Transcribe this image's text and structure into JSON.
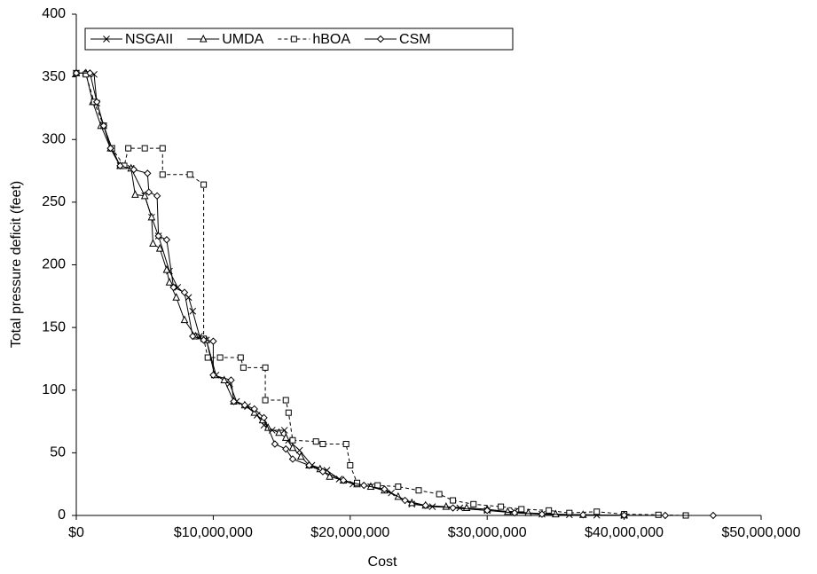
{
  "chart_data": {
    "type": "line",
    "x_label": "Cost",
    "y_label": "Total pressure deficit (feet)",
    "xlim": [
      0,
      50000000
    ],
    "ylim": [
      0,
      400
    ],
    "xticks": [
      {
        "value": 0,
        "label": "$0"
      },
      {
        "value": 10000000,
        "label": "$10,000,000"
      },
      {
        "value": 20000000,
        "label": "$20,000,000"
      },
      {
        "value": 30000000,
        "label": "$30,000,000"
      },
      {
        "value": 40000000,
        "label": "$40,000,000"
      },
      {
        "value": 50000000,
        "label": "$50,000,000"
      }
    ],
    "yticks": [
      0,
      50,
      100,
      150,
      200,
      250,
      300,
      350,
      400
    ],
    "legend": "top-left",
    "series": [
      {
        "name": "NSGAII",
        "color": "#000000",
        "marker": "x",
        "dash": "solid",
        "x": [
          0,
          800000,
          1300000,
          1500000,
          2000000,
          2600000,
          3200000,
          4000000,
          5000000,
          5500000,
          6000000,
          6800000,
          7400000,
          8200000,
          8500000,
          9000000,
          9500000,
          10200000,
          11200000,
          11700000,
          12500000,
          13200000,
          13700000,
          14300000,
          15200000,
          15500000,
          16300000,
          17200000,
          18300000,
          19200000,
          20200000,
          21500000,
          23000000,
          24500000,
          26000000,
          28000000,
          30000000,
          32000000,
          34000000,
          36000000,
          38000000,
          40000000
        ],
        "values": [
          353,
          353,
          352,
          329,
          311,
          293,
          279,
          277,
          255,
          238,
          223,
          195,
          182,
          174,
          163,
          143,
          140,
          112,
          105,
          91,
          87,
          80,
          72,
          68,
          68,
          60,
          52,
          40,
          36,
          29,
          25,
          23,
          18,
          9,
          7,
          6,
          4,
          3,
          1,
          0.5,
          0.2,
          0
        ]
      },
      {
        "name": "UMDA",
        "color": "#000000",
        "marker": "triangle",
        "dash": "solid",
        "x": [
          0,
          700000,
          1200000,
          1800000,
          2500000,
          3200000,
          4000000,
          4300000,
          5000000,
          5500000,
          5600000,
          6100000,
          6600000,
          6800000,
          7300000,
          7900000,
          8700000,
          9500000,
          10100000,
          10800000,
          11500000,
          12300000,
          13000000,
          13600000,
          14000000,
          14800000,
          15300000,
          15800000,
          16400000,
          17000000,
          17800000,
          18500000,
          19500000,
          20500000,
          21500000,
          22500000,
          23500000,
          24500000,
          25500000,
          27000000,
          28500000,
          30000000,
          31500000,
          33000000,
          35000000,
          37000000,
          40000000
        ],
        "values": [
          353,
          353,
          330,
          311,
          293,
          279,
          277,
          256,
          255,
          238,
          217,
          213,
          196,
          186,
          174,
          156,
          143,
          140,
          112,
          108,
          91,
          88,
          82,
          76,
          70,
          66,
          62,
          54,
          47,
          40,
          37,
          31,
          28,
          25,
          23,
          20,
          15,
          10,
          8,
          7,
          6,
          5,
          3,
          2,
          1,
          0.5,
          0.2
        ]
      },
      {
        "name": "hBOA",
        "color": "#000000",
        "marker": "square",
        "dash": "dashed",
        "x": [
          0,
          700000,
          1300000,
          2000000,
          2600000,
          3500000,
          3800000,
          5000000,
          6300000,
          6300000,
          8300000,
          9300000,
          9300000,
          9600000,
          10500000,
          12000000,
          12200000,
          13800000,
          13800000,
          15300000,
          15500000,
          15800000,
          17500000,
          18000000,
          19700000,
          20000000,
          20500000,
          22000000,
          23500000,
          25000000,
          26500000,
          27500000,
          29000000,
          31000000,
          32500000,
          34500000,
          36000000,
          38000000,
          40000000,
          42500000,
          44500000
        ],
        "values": [
          353,
          352,
          330,
          311,
          293,
          279,
          293,
          293,
          293,
          272,
          272,
          264,
          141,
          126,
          126,
          126,
          118,
          118,
          92,
          92,
          82,
          60,
          59,
          57,
          57,
          40,
          26,
          24,
          23,
          20,
          17,
          12,
          9,
          7,
          5,
          4,
          2,
          3,
          1,
          0.5,
          0
        ]
      },
      {
        "name": "CSM",
        "color": "#000000",
        "marker": "diamond",
        "dash": "solid",
        "x": [
          0,
          1000000,
          1500000,
          2000000,
          2500000,
          3200000,
          4200000,
          5200000,
          5300000,
          5900000,
          6000000,
          6600000,
          7100000,
          7900000,
          8500000,
          9300000,
          10000000,
          10000000,
          11300000,
          11500000,
          12300000,
          13000000,
          13700000,
          14500000,
          15300000,
          15800000,
          17000000,
          18000000,
          19500000,
          21000000,
          22500000,
          24000000,
          25500000,
          27500000,
          30000000,
          32000000,
          34000000,
          37000000,
          40000000,
          43000000,
          46500000
        ],
        "values": [
          353,
          353,
          330,
          311,
          293,
          279,
          276,
          273,
          258,
          255,
          223,
          220,
          182,
          178,
          143,
          140,
          139,
          112,
          108,
          91,
          88,
          85,
          78,
          57,
          53,
          45,
          40,
          35,
          28,
          24,
          21,
          12,
          8,
          6,
          4,
          2,
          1,
          0.5,
          0.2,
          0,
          0
        ]
      }
    ]
  }
}
